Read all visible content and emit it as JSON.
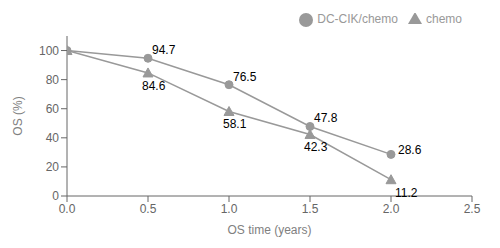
{
  "chart_data": {
    "type": "line",
    "x": [
      0.0,
      0.5,
      1.0,
      1.5,
      2.0
    ],
    "xlabel": "OS time (years)",
    "ylabel": "OS (%)",
    "xlim": [
      0,
      2.5
    ],
    "ylim": [
      0,
      110
    ],
    "xticks": [
      {
        "value": 0,
        "label": "0.0"
      },
      {
        "value": 0.5,
        "label": "0.5"
      },
      {
        "value": 1,
        "label": "1.0"
      },
      {
        "value": 1.5,
        "label": "1.5"
      },
      {
        "value": 2,
        "label": "2.0"
      },
      {
        "value": 2.5,
        "label": "2.5"
      }
    ],
    "yticks": [
      0,
      20,
      40,
      60,
      80,
      100
    ],
    "grid": false,
    "legend": "upper right",
    "data_labels": true,
    "series": [
      {
        "name": "DC-CIK/chemo",
        "color": "#999999",
        "marker": "circle",
        "values": [
          100,
          94.7,
          76.5,
          47.8,
          28.6
        ],
        "value_labels": [
          null,
          "94.7",
          "76.5",
          "47.8",
          "28.6"
        ]
      },
      {
        "name": "chemo",
        "color": "#999999",
        "marker": "triangle",
        "values": [
          100,
          84.6,
          58.1,
          42.3,
          11.2
        ],
        "value_labels": [
          null,
          "84.6",
          "58.1",
          "42.3",
          "11.2"
        ]
      }
    ]
  }
}
